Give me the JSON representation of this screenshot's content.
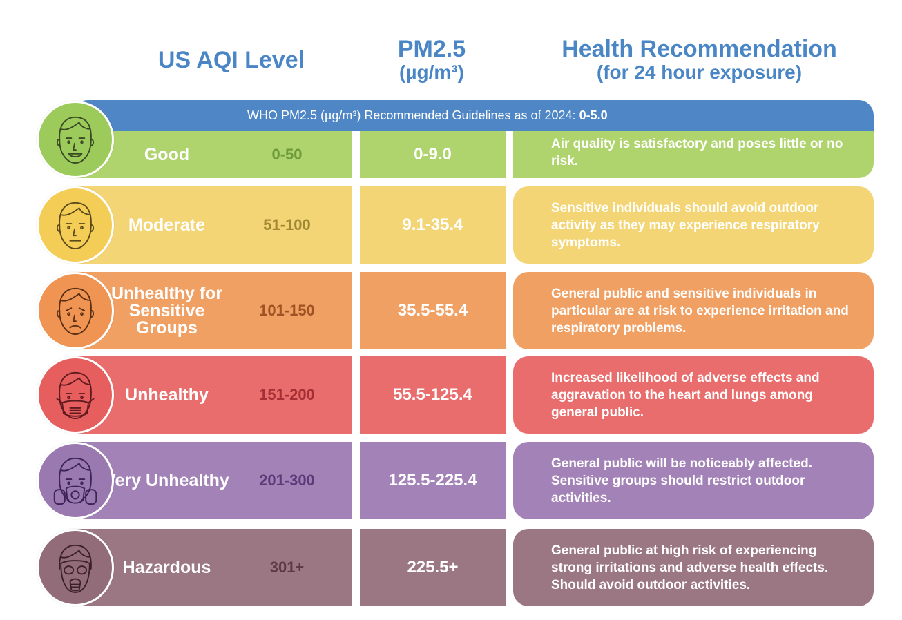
{
  "headers": {
    "aqi_level": "US AQI Level",
    "pm_title": "PM2.5",
    "pm_unit": "(µg/m³)",
    "health_title": "Health Recommendation",
    "health_sub": "(for 24 hour exposure)"
  },
  "who_banner": {
    "text": "WHO PM2.5 (µg/m³) Recommended Guidelines as of 2024: ",
    "value": "0-5.0"
  },
  "rows": [
    {
      "level": "Good",
      "range": "0-50",
      "pm": "0-9.0",
      "health": "Air quality is satisfactory and poses little or no risk.",
      "color": "#afd46e",
      "face_color": "#9ccb5c",
      "range_color": "#6c9a3a"
    },
    {
      "level": "Moderate",
      "range": "51-100",
      "pm": "9.1-35.4",
      "health": "Sensitive individuals should avoid outdoor activity as they may experience respiratory symptoms.",
      "color": "#f4d575",
      "face_color": "#f3cd55",
      "range_color": "#a08734"
    },
    {
      "level": "Unhealthy for Sensitive Groups",
      "range": "101-150",
      "pm": "35.5-55.4",
      "health": "General public and sensitive individuals in particular are at risk to experience irritation and respiratory problems.",
      "color": "#f1a063",
      "face_color": "#ef9452",
      "range_color": "#9f5325"
    },
    {
      "level": "Unhealthy",
      "range": "151-200",
      "pm": "55.5-125.4",
      "health": "Increased likelihood of adverse effects and aggravation to the heart and lungs among general public.",
      "color": "#e96d6c",
      "face_color": "#e65e5e",
      "range_color": "#a42f35"
    },
    {
      "level": "Very Unhealthy",
      "range": "201-300",
      "pm": "125.5-225.4",
      "health": "General public will be noticeably affected. Sensitive groups should restrict outdoor activities.",
      "color": "#a383b7",
      "face_color": "#9a78b0",
      "range_color": "#5b3a78"
    },
    {
      "level": "Hazardous",
      "range": "301+",
      "pm": "225.5+",
      "health": "General public at high risk of experiencing strong irritations and adverse health effects. Should avoid outdoor activities.",
      "color": "#9b7683",
      "face_color": "#936c7a",
      "range_color": "#5c3945"
    }
  ],
  "icons": [
    "smiling-face-icon",
    "neutral-face-icon",
    "worried-face-icon",
    "face-mask-icon",
    "gas-mask-icon",
    "full-gas-mask-icon"
  ],
  "colors": {
    "header_blue": "#4a86c5",
    "banner_blue": "#4f86c6"
  }
}
